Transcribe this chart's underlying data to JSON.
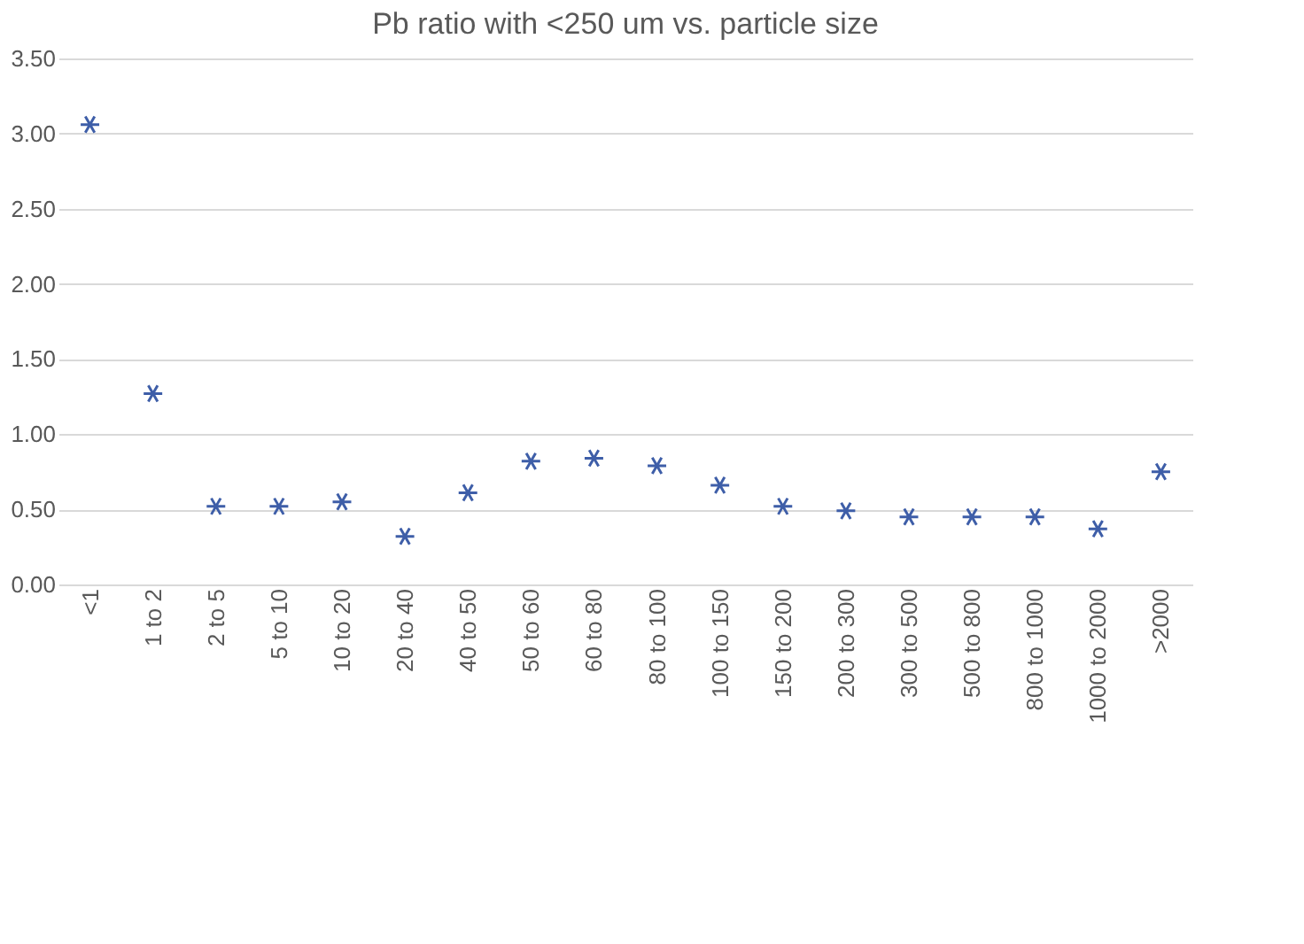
{
  "chart_data": {
    "type": "scatter",
    "title": "Pb ratio with <250 um vs. particle size",
    "categories": [
      "<1",
      "1 to 2",
      "2 to 5",
      "5 to 10",
      "10 to 20",
      "20 to 40",
      "40 to 50",
      "50 to 60",
      "60 to 80",
      "80 to 100",
      "100 to 150",
      "150 to 200",
      "200 to 300",
      "300 to 500",
      "500 to 800",
      "800 to 1000",
      "1000 to 2000",
      ">2000"
    ],
    "series": [
      {
        "color": "#3e5ea8",
        "values": [
          3.06,
          1.27,
          0.52,
          0.52,
          0.55,
          0.32,
          0.61,
          0.82,
          0.84,
          0.79,
          0.66,
          0.52,
          0.49,
          0.45,
          0.45,
          0.45,
          0.37,
          0.75
        ]
      }
    ],
    "ylim": [
      0,
      3.5
    ],
    "yticks": [
      {
        "value": 0,
        "label": "0.00"
      },
      {
        "value": 0.5,
        "label": "0.50"
      },
      {
        "value": 1,
        "label": "1.00"
      },
      {
        "value": 1.5,
        "label": "1.50"
      },
      {
        "value": 2,
        "label": "2.00"
      },
      {
        "value": 2.5,
        "label": "2.50"
      },
      {
        "value": 3,
        "label": "3.00"
      },
      {
        "value": 3.5,
        "label": "3.50"
      }
    ],
    "grid": "y",
    "marker": "cross"
  }
}
